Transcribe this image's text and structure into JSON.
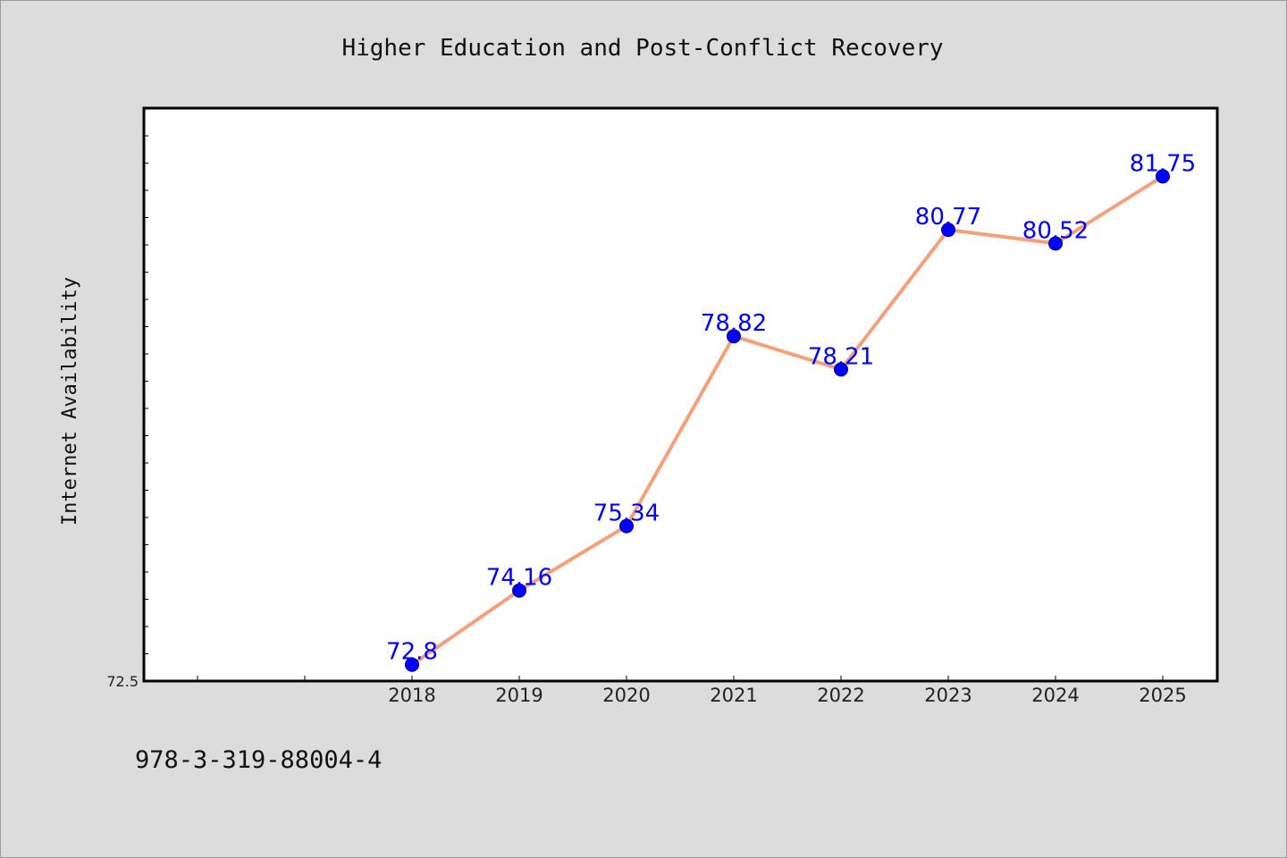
{
  "footnote": "978-3-319-88004-4",
  "chart_data": {
    "type": "line",
    "title": "Higher Education and Post-Conflict Recovery",
    "xlabel": "",
    "ylabel": "Internet Availability",
    "categories": [
      "",
      "",
      "2018",
      "2019",
      "2020",
      "2021",
      "2022",
      "2023",
      "2024",
      "2025"
    ],
    "x": [
      "2018",
      "2019",
      "2020",
      "2021",
      "2022",
      "2023",
      "2024",
      "2025"
    ],
    "series": [
      {
        "values": [
          72.8,
          74.16,
          75.34,
          78.82,
          78.21,
          80.77,
          80.52,
          81.75
        ],
        "labels": [
          "72.8",
          "74.16",
          "75.34",
          "78.82",
          "78.21",
          "80.77",
          "80.52",
          "81.75"
        ]
      }
    ],
    "ylim": [
      72.5,
      83.0
    ],
    "ytick_labels": [
      "72.5"
    ],
    "grid": false,
    "legend": "none",
    "colors": {
      "line": "#f4a07a",
      "marker": "#0000ff",
      "marker_edge": "#000080",
      "data_label": "#0000ff",
      "plot_bg": "#ffffff",
      "figure_bg": "#dcdcdc"
    }
  }
}
